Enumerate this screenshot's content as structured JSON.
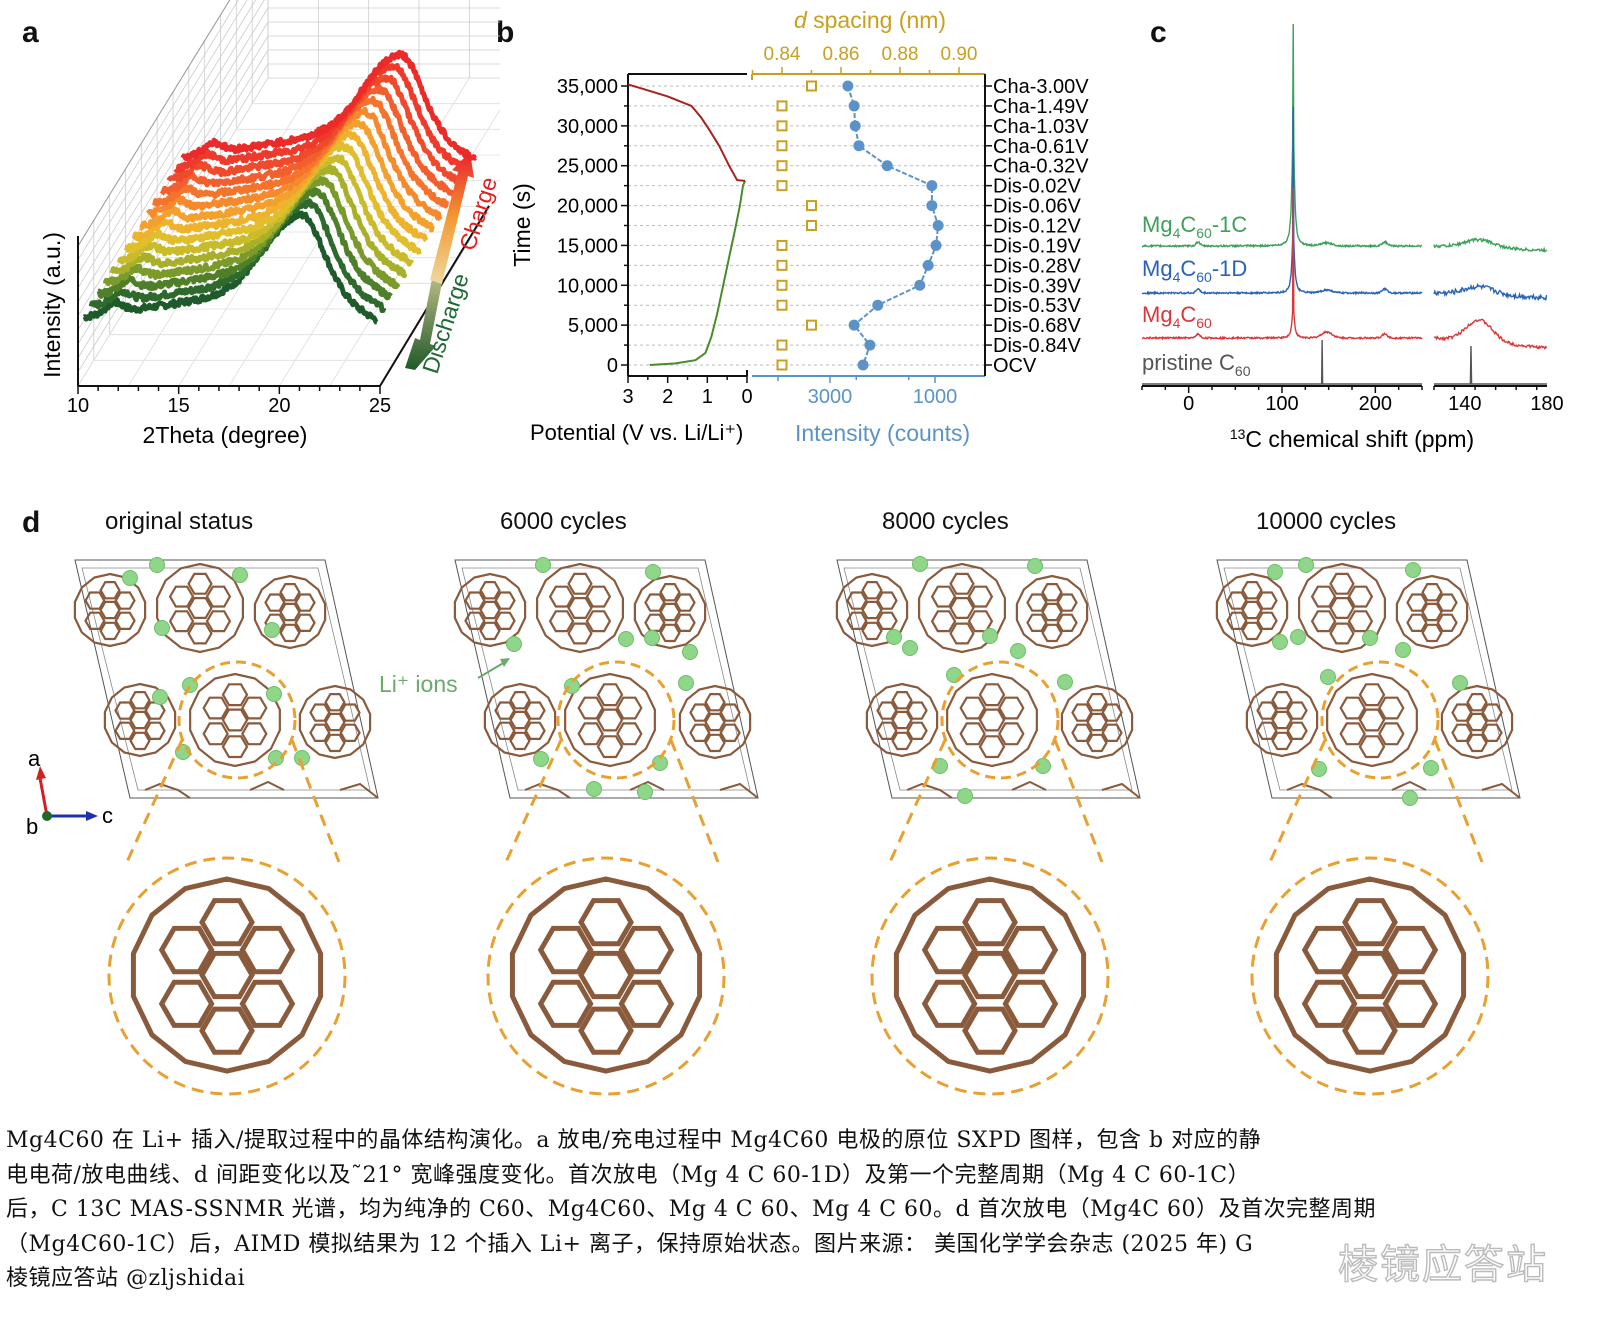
{
  "figure": {
    "panel_labels": {
      "a": "a",
      "b": "b",
      "c": "c",
      "d": "d"
    },
    "panel_d": {
      "titles": [
        "original status",
        "6000 cycles",
        "8000 cycles",
        "10000 cycles"
      ],
      "annotation": "Li⁺ ions",
      "axes_labels": {
        "a": "a",
        "b": "b",
        "c": "c"
      },
      "colors": {
        "carbon": "#8a5a3c",
        "li_ion": "#8fd68a",
        "highlight": "#e8a030"
      }
    }
  },
  "chart_data": [
    {
      "id": "a",
      "type": "line",
      "title": "",
      "xlabel": "2Theta (degree)",
      "ylabel": "Intensity (a.u.)",
      "xlim": [
        10,
        25
      ],
      "xticks": [
        "10",
        "15",
        "20",
        "25"
      ],
      "arrow_labels": {
        "discharge": "Discharge",
        "charge": "Charge"
      },
      "series_count": 15,
      "broad_peak_center_deg": 21,
      "colors_low_to_high": [
        "#1f5a2a",
        "#2d6a2c",
        "#4f7f28",
        "#7a9a2a",
        "#a8b02a",
        "#c9bb2a",
        "#e0be2c",
        "#efb22d",
        "#f3a12c",
        "#f48a2c",
        "#f4742c",
        "#f25e2c",
        "#f04a2c",
        "#ee3a2a",
        "#ec2a28"
      ]
    },
    {
      "id": "b",
      "type": "line",
      "ylabel": "Time (s)",
      "ylim": [
        -1300,
        36300
      ],
      "yticks": [
        "0",
        "5,000",
        "10,000",
        "15,000",
        "20,000",
        "25,000",
        "30,000",
        "35,000"
      ],
      "potential_axis": {
        "label": "Potential (V vs. Li/Li⁺)",
        "ticks": [
          "3",
          "2",
          "1",
          "0"
        ],
        "range": [
          3,
          0
        ]
      },
      "intensity_axis": {
        "label": "Intensity (counts)",
        "ticks": [
          "3000",
          "1000"
        ],
        "color": "#5b93c9"
      },
      "dspacing_axis": {
        "label_italic": "d",
        "label_rest": " spacing (nm)",
        "ticks": [
          "0.84",
          "0.86",
          "0.88",
          "0.90"
        ],
        "range": [
          0.82,
          0.915
        ],
        "color": "#c8a020"
      },
      "states": [
        "Cha-3.00V",
        "Cha-1.49V",
        "Cha-1.03V",
        "Cha-0.61V",
        "Cha-0.32V",
        "Dis-0.02V",
        "Dis-0.06V",
        "Dis-0.12V",
        "Dis-0.19V",
        "Dis-0.28V",
        "Dis-0.39V",
        "Dis-0.53V",
        "Dis-0.68V",
        "Dis-0.84V",
        "OCV"
      ],
      "state_times": [
        35000,
        32500,
        30000,
        27500,
        25000,
        22500,
        20000,
        17500,
        15000,
        12500,
        10000,
        7500,
        5000,
        2500,
        0
      ],
      "intensity_values": [
        2660,
        2540,
        2520,
        2450,
        1910,
        1060,
        1060,
        940,
        980,
        1130,
        1290,
        2090,
        2540,
        2240,
        2370
      ],
      "dspacing_values": [
        0.85,
        0.84,
        0.84,
        0.84,
        0.84,
        0.84,
        0.85,
        0.85,
        0.84,
        0.84,
        0.84,
        0.84,
        0.85,
        0.84,
        0.84
      ],
      "discharge_curve": {
        "color": "#4a8a28",
        "points": [
          [
            2.45,
            0
          ],
          [
            1.8,
            200
          ],
          [
            1.3,
            600
          ],
          [
            1.05,
            1500
          ],
          [
            0.9,
            3500
          ],
          [
            0.75,
            6500
          ],
          [
            0.6,
            10000
          ],
          [
            0.45,
            13500
          ],
          [
            0.3,
            17000
          ],
          [
            0.18,
            20000
          ],
          [
            0.1,
            22500
          ],
          [
            0.05,
            23100
          ]
        ]
      },
      "charge_curve": {
        "color": "#a82020",
        "points": [
          [
            0.05,
            23100
          ],
          [
            0.25,
            23200
          ],
          [
            0.45,
            25000
          ],
          [
            0.7,
            27500
          ],
          [
            0.95,
            29500
          ],
          [
            1.15,
            31000
          ],
          [
            1.4,
            32500
          ],
          [
            2.0,
            33700
          ],
          [
            2.6,
            34600
          ],
          [
            3.0,
            35200
          ]
        ]
      }
    },
    {
      "id": "c",
      "type": "line",
      "xlabel_sup": "13",
      "xlabel_rest": "C chemical shift (ppm)",
      "main_xlim": [
        -50,
        250
      ],
      "main_xticks": [
        "0",
        "100",
        "200"
      ],
      "inset_xlim": [
        125,
        180
      ],
      "inset_xticks": [
        "140",
        "180"
      ],
      "series": [
        {
          "name": "Mg4C60-1C",
          "label_base": "Mg",
          "sub1": "4",
          "mid": "C",
          "sub2": "60",
          "suffix": "-1C",
          "color": "#3da05a",
          "peaks_ppm": [
            10,
            112,
            145,
            210
          ]
        },
        {
          "name": "Mg4C60-1D",
          "label_base": "Mg",
          "sub1": "4",
          "mid": "C",
          "sub2": "60",
          "suffix": "-1D",
          "color": "#2a62b8",
          "peaks_ppm": [
            10,
            112,
            145,
            210
          ]
        },
        {
          "name": "Mg4C60",
          "label_base": "Mg",
          "sub1": "4",
          "mid": "C",
          "sub2": "60",
          "suffix": "",
          "color": "#d8383a",
          "peaks_ppm": [
            10,
            112,
            148,
            210
          ]
        },
        {
          "name": "pristine C60",
          "label_base": "pristine C",
          "sub1": "",
          "mid": "",
          "sub2": "60",
          "suffix": "",
          "color": "#555555",
          "peaks_ppm": [
            143
          ]
        }
      ]
    }
  ],
  "caption": {
    "lines": [
      "Mg4C60 在 Li+ 插入/提取过程中的晶体结构演化。a 放电/充电过程中 Mg4C60 电极的原位 SXPD 图样，包含 b 对应的静",
      "电电荷/放电曲线、d 间距变化以及˜21° 宽峰强度变化。首次放电（Mg 4 C 60-1D）及第一个完整周期（Mg 4 C 60-1C）",
      "后，C 13C MAS-SSNMR 光谱，均为纯净的 C60、Mg4C60、Mg 4 C 60、Mg 4 C 60。d 首次放电（Mg4C 60）及首次完整周期",
      "（Mg4C60-1C）后，AIMD 模拟结果为 12 个插入 Li+ 离子，保持原始状态。图片来源： 美国化学学会杂志 (2025 年) G",
      "棱镜应答站 @zljshidai"
    ],
    "watermark": "棱镜应答站"
  }
}
